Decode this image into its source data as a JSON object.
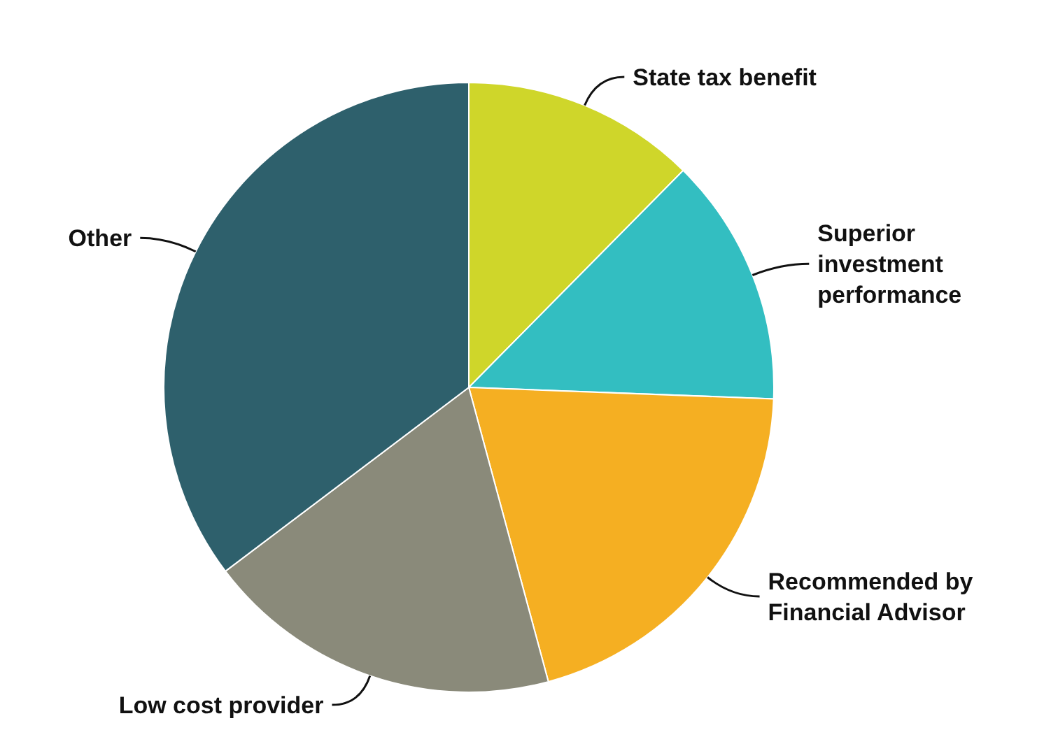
{
  "chart_data": {
    "type": "pie",
    "categories": [
      "State tax benefit",
      "Superior investment performance",
      "Recommended by Financial Advisor",
      "Low cost provider",
      "Other"
    ],
    "values": [
      12.4,
      13.2,
      20.2,
      18.9,
      35.3
    ],
    "colors": [
      "#cfd62a",
      "#33bec1",
      "#f5af22",
      "#8a8a7a",
      "#2e606c"
    ],
    "legend": false
  }
}
